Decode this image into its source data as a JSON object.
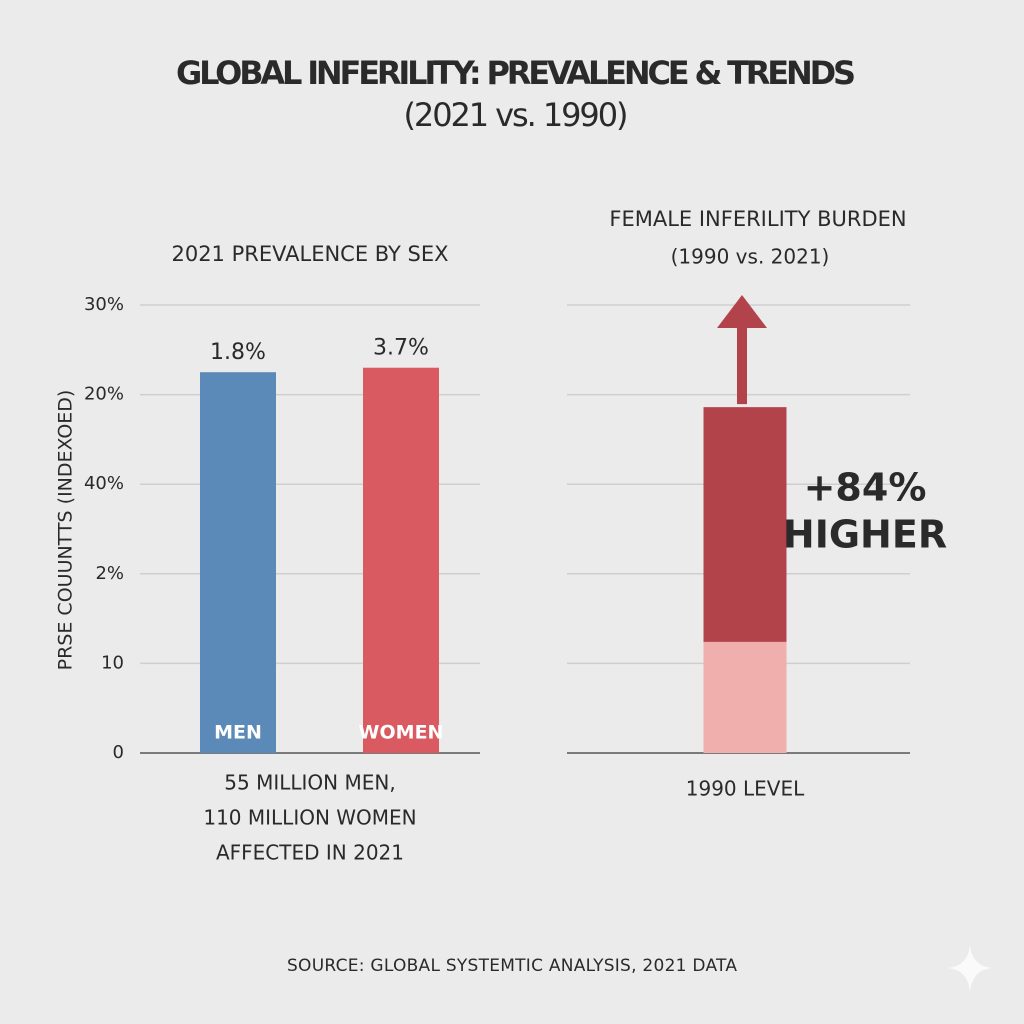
{
  "title": "GLOBAL INFERILITY: PREVALENCE & TRENDS",
  "subtitle": "(2021 vs. 1990)",
  "source": "SOURCE: GLOBAL SYSTEMTIC ANALYSIS, 2021 DATA",
  "chart_data": [
    {
      "type": "bar",
      "title": "2021 PREVALENCE BY SEX",
      "y_label": "PRSE COUUNTTS (INDEXOED)",
      "categories": [
        "MEN",
        "WOMEN"
      ],
      "values": [
        42.5,
        43
      ],
      "annotations": [
        "1.8%",
        "3.7%"
      ],
      "colors": [
        "#5b8ab8",
        "#d95a60"
      ],
      "ylim": [
        0,
        50
      ],
      "yticks": [
        0,
        10,
        {
          "value": 20,
          "label": "2%"
        },
        {
          "value": 30,
          "label": "40%"
        },
        {
          "value": 40,
          "label": "20%"
        },
        {
          "value": 50,
          "label": "30%"
        }
      ],
      "grid": true,
      "tick_labels": true,
      "caption": [
        "55 MILLION MEN,",
        "110 MILLION WOMEN",
        "AFFECTED IN 2021"
      ]
    },
    {
      "type": "stacked_bar",
      "title": "FEMALE INFERILITY BURDEN",
      "subtitle": "(1990 vs. 2021)",
      "series": [
        {
          "name": "1990 LEVEL",
          "color": "#f0aeac",
          "values": [
            12.4
          ]
        },
        {
          "color": "#b3434a",
          "values": [
            26.2
          ]
        }
      ],
      "annotation": [
        "+84%",
        "HIGHER"
      ],
      "ylim": [
        0,
        50
      ],
      "yticks": [
        0,
        10,
        20,
        30,
        40,
        50
      ],
      "grid": true,
      "tick_labels": false
    }
  ]
}
